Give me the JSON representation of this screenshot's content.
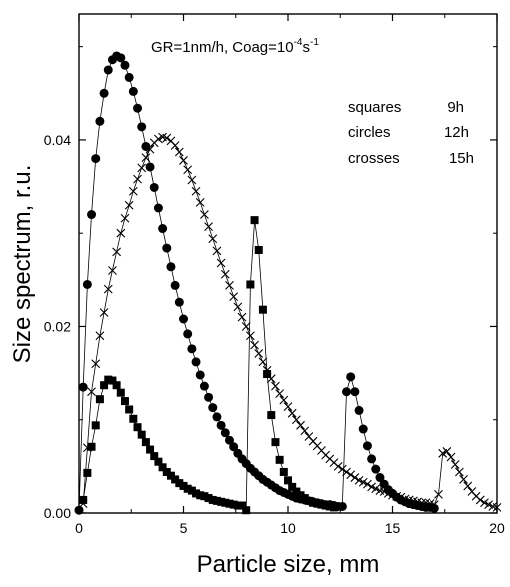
{
  "chart_data": {
    "type": "scatter",
    "xlabel": "Particle size, mm",
    "ylabel": "Size spectrum, r.u.",
    "xlim": [
      0,
      20
    ],
    "ylim": [
      0,
      0.0535
    ],
    "xticks": [
      "0",
      "5",
      "10",
      "15",
      "20"
    ],
    "yticks": [
      "0.00",
      "0.02",
      "0.04"
    ],
    "grid": false,
    "annotation": {
      "prefix": "GR=1nm/h,  Coag=10",
      "exponent": "-4",
      "unit": "s",
      "unit_exponent": "-1"
    },
    "legend": {
      "placement": "top-right",
      "entries": [
        {
          "marker": "squares",
          "time": "9h"
        },
        {
          "marker": "circles",
          "time": "12h"
        },
        {
          "marker": "crosses",
          "time": "15h"
        }
      ]
    },
    "series": [
      {
        "marker": "square",
        "x": [
          0.2,
          0.4,
          0.6,
          0.8,
          1.0,
          1.2,
          1.4,
          1.6,
          1.8,
          2.0,
          2.2,
          2.4,
          2.6,
          2.8,
          3.0,
          3.2,
          3.4,
          3.6,
          3.8,
          4.0,
          4.2,
          4.4,
          4.6,
          4.8,
          5.0,
          5.2,
          5.4,
          5.6,
          5.8,
          6.0,
          6.2,
          6.4,
          6.6,
          6.8,
          7.0,
          7.2,
          7.4,
          7.6,
          7.8,
          8.0,
          8.2,
          8.4,
          8.6,
          8.8,
          9.0,
          9.2,
          9.4,
          9.6,
          9.8,
          10.0,
          10.2,
          10.4,
          10.6,
          10.8,
          11.0,
          11.2,
          11.4,
          11.6,
          11.8,
          12.0,
          12.2
        ],
        "y": [
          0.0014,
          0.0043,
          0.0071,
          0.0094,
          0.0122,
          0.0137,
          0.0143,
          0.0142,
          0.0137,
          0.0129,
          0.012,
          0.0111,
          0.0101,
          0.0092,
          0.0084,
          0.0076,
          0.0068,
          0.0061,
          0.0055,
          0.0049,
          0.0044,
          0.004,
          0.0036,
          0.0032,
          0.0029,
          0.0026,
          0.0024,
          0.0021,
          0.0019,
          0.0018,
          0.0016,
          0.0014,
          0.0013,
          0.0012,
          0.0011,
          0.001,
          0.0009,
          0.0008,
          0.0008,
          0.0003,
          0.0245,
          0.0314,
          0.0282,
          0.0218,
          0.0149,
          0.0105,
          0.0076,
          0.0057,
          0.0044,
          0.0035,
          0.0028,
          0.0023,
          0.0019,
          0.0016,
          0.0013,
          0.0011,
          0.001,
          0.0009,
          0.0008,
          0.0007,
          0.0006
        ]
      },
      {
        "marker": "circle",
        "x": [
          0.0,
          0.2,
          0.4,
          0.6,
          0.8,
          1.0,
          1.2,
          1.4,
          1.6,
          1.8,
          2.0,
          2.2,
          2.4,
          2.6,
          2.8,
          3.0,
          3.2,
          3.4,
          3.6,
          3.8,
          4.0,
          4.2,
          4.4,
          4.6,
          4.8,
          5.0,
          5.2,
          5.4,
          5.6,
          5.8,
          6.0,
          6.2,
          6.4,
          6.6,
          6.8,
          7.0,
          7.2,
          7.4,
          7.6,
          7.8,
          8.0,
          8.2,
          8.4,
          8.6,
          8.8,
          9.0,
          9.2,
          9.4,
          9.6,
          9.8,
          10.0,
          10.2,
          10.4,
          10.6,
          10.8,
          11.0,
          11.2,
          11.4,
          11.6,
          11.8,
          12.0,
          12.2,
          12.4,
          12.6,
          12.8,
          13.0,
          13.2,
          13.4,
          13.6,
          13.8,
          14.0,
          14.2,
          14.4,
          14.6,
          14.8,
          15.0,
          15.2,
          15.4,
          15.6,
          15.8,
          16.0,
          16.2,
          16.4,
          16.6,
          16.8,
          17.0
        ],
        "y": [
          0.0003,
          0.0135,
          0.0245,
          0.032,
          0.038,
          0.042,
          0.045,
          0.0475,
          0.0486,
          0.049,
          0.0488,
          0.048,
          0.0467,
          0.0452,
          0.0434,
          0.0414,
          0.0393,
          0.0371,
          0.0349,
          0.0327,
          0.0305,
          0.0284,
          0.0264,
          0.0244,
          0.0226,
          0.0208,
          0.0192,
          0.0176,
          0.0162,
          0.0148,
          0.0136,
          0.0124,
          0.0113,
          0.0103,
          0.0094,
          0.0086,
          0.0078,
          0.0071,
          0.0064,
          0.0058,
          0.0053,
          0.0048,
          0.0044,
          0.004,
          0.0036,
          0.0033,
          0.003,
          0.0027,
          0.0024,
          0.0022,
          0.002,
          0.0018,
          0.0016,
          0.0015,
          0.0014,
          0.0013,
          0.0012,
          0.0011,
          0.001,
          0.0009,
          0.0009,
          0.0008,
          0.0007,
          0.0007,
          0.013,
          0.0146,
          0.013,
          0.011,
          0.009,
          0.0072,
          0.0058,
          0.0047,
          0.0038,
          0.0031,
          0.0025,
          0.0021,
          0.0017,
          0.0014,
          0.0012,
          0.001,
          0.0009,
          0.0008,
          0.0007,
          0.0006,
          0.0006,
          0.0005
        ]
      },
      {
        "marker": "cross",
        "x": [
          0.2,
          0.4,
          0.6,
          0.8,
          1.0,
          1.2,
          1.4,
          1.6,
          1.8,
          2.0,
          2.2,
          2.4,
          2.6,
          2.8,
          3.0,
          3.2,
          3.4,
          3.6,
          3.8,
          4.0,
          4.2,
          4.4,
          4.6,
          4.8,
          5.0,
          5.2,
          5.4,
          5.6,
          5.8,
          6.0,
          6.2,
          6.4,
          6.6,
          6.8,
          7.0,
          7.2,
          7.4,
          7.6,
          7.8,
          8.0,
          8.2,
          8.4,
          8.6,
          8.8,
          9.0,
          9.2,
          9.4,
          9.6,
          9.8,
          10.0,
          10.2,
          10.4,
          10.6,
          10.8,
          11.0,
          11.2,
          11.4,
          11.6,
          11.8,
          12.0,
          12.2,
          12.4,
          12.6,
          12.8,
          13.0,
          13.2,
          13.4,
          13.6,
          13.8,
          14.0,
          14.2,
          14.4,
          14.6,
          14.8,
          15.0,
          15.2,
          15.4,
          15.6,
          15.8,
          16.0,
          16.2,
          16.4,
          16.6,
          16.8,
          17.0,
          17.2,
          17.4,
          17.6,
          17.8,
          18.0,
          18.2,
          18.4,
          18.6,
          18.8,
          19.0,
          19.2,
          19.4,
          19.6,
          19.8,
          20.0
        ],
        "y": [
          0.001,
          0.007,
          0.013,
          0.016,
          0.019,
          0.0215,
          0.024,
          0.026,
          0.028,
          0.03,
          0.0316,
          0.033,
          0.0345,
          0.0358,
          0.037,
          0.0381,
          0.039,
          0.0397,
          0.0401,
          0.0403,
          0.0402,
          0.0399,
          0.0394,
          0.0387,
          0.0378,
          0.0368,
          0.0357,
          0.0345,
          0.0333,
          0.032,
          0.0307,
          0.0294,
          0.0281,
          0.0268,
          0.0256,
          0.0244,
          0.0232,
          0.0221,
          0.021,
          0.02,
          0.019,
          0.018,
          0.0171,
          0.0162,
          0.0153,
          0.0144,
          0.0136,
          0.0128,
          0.0121,
          0.0114,
          0.0107,
          0.01,
          0.0094,
          0.0088,
          0.0082,
          0.0077,
          0.0072,
          0.0067,
          0.0062,
          0.0058,
          0.0054,
          0.005,
          0.0047,
          0.0044,
          0.0041,
          0.0038,
          0.0035,
          0.0033,
          0.0031,
          0.0028,
          0.0026,
          0.0024,
          0.0023,
          0.0021,
          0.0019,
          0.0018,
          0.0017,
          0.0015,
          0.0014,
          0.0013,
          0.0012,
          0.0011,
          0.0011,
          0.001,
          0.0009,
          0.002,
          0.0064,
          0.0066,
          0.006,
          0.0052,
          0.0044,
          0.0036,
          0.0029,
          0.0023,
          0.0018,
          0.0014,
          0.0011,
          0.0009,
          0.0007,
          0.0006
        ]
      }
    ]
  }
}
